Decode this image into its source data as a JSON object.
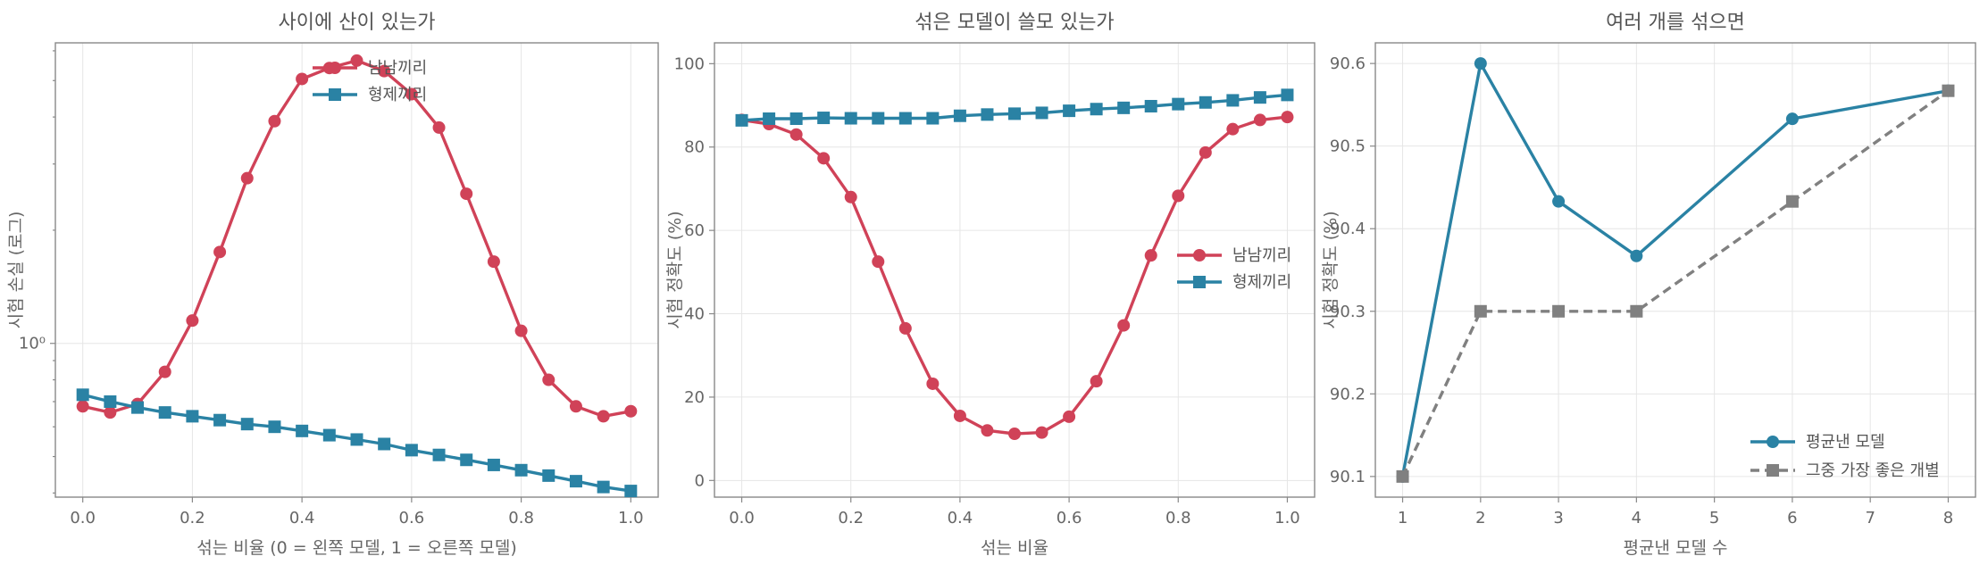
{
  "colors": {
    "red": "#d04258",
    "blue": "#2a82a4",
    "gray": "#808080"
  },
  "chart_data": [
    {
      "type": "line",
      "title": "사이에 산이 있는가",
      "xlabel": "섞는 비율 (0 = 왼쪽 모델, 1 = 오른쪽 모델)",
      "ylabel": "시험 손실 (로그)",
      "yscale": "log",
      "xlim": [
        -0.05,
        1.05
      ],
      "ylim": [
        0.39,
        6.3
      ],
      "x_ticks": [
        "0.0",
        "0.2",
        "0.4",
        "0.6",
        "0.8",
        "1.0"
      ],
      "y_ticks": [
        "10⁰"
      ],
      "legend_position": "top-center",
      "grid": true,
      "x": [
        0.0,
        0.05,
        0.1,
        0.15,
        0.2,
        0.25,
        0.3,
        0.35,
        0.4,
        0.45,
        0.5,
        0.55,
        0.6,
        0.65,
        0.7,
        0.75,
        0.8,
        0.85,
        0.9,
        0.95,
        1.0
      ],
      "series": [
        {
          "name": "남남끼리",
          "color": "#d04258",
          "marker": "circle",
          "values": [
            0.68,
            0.655,
            0.69,
            0.84,
            1.15,
            1.75,
            2.75,
            3.9,
            5.05,
            5.4,
            5.65,
            5.3,
            4.6,
            3.75,
            2.5,
            1.65,
            1.08,
            0.8,
            0.68,
            0.64,
            0.66
          ]
        },
        {
          "name": "형제끼리",
          "color": "#2a82a4",
          "marker": "square",
          "values": [
            0.73,
            0.7,
            0.675,
            0.655,
            0.64,
            0.625,
            0.61,
            0.6,
            0.585,
            0.57,
            0.555,
            0.54,
            0.52,
            0.505,
            0.49,
            0.475,
            0.46,
            0.445,
            0.43,
            0.415,
            0.405
          ]
        }
      ]
    },
    {
      "type": "line",
      "title": "섞은 모델이 쓸모 있는가",
      "xlabel": "섞는 비율",
      "ylabel": "시험 정확도 (%)",
      "xlim": [
        -0.05,
        1.05
      ],
      "ylim": [
        -4,
        105
      ],
      "x_ticks": [
        "0.0",
        "0.2",
        "0.4",
        "0.6",
        "0.8",
        "1.0"
      ],
      "y_ticks": [
        "0",
        "20",
        "40",
        "60",
        "80",
        "100"
      ],
      "legend_position": "center-right",
      "grid": true,
      "x": [
        0.0,
        0.05,
        0.1,
        0.15,
        0.2,
        0.25,
        0.3,
        0.35,
        0.4,
        0.45,
        0.5,
        0.55,
        0.6,
        0.65,
        0.7,
        0.75,
        0.8,
        0.85,
        0.9,
        0.95,
        1.0
      ],
      "series": [
        {
          "name": "남남끼리",
          "color": "#d04258",
          "marker": "circle",
          "values": [
            86.5,
            85.5,
            83.0,
            77.3,
            68.0,
            52.5,
            36.5,
            23.2,
            15.5,
            12.0,
            11.2,
            11.5,
            15.3,
            23.8,
            37.2,
            54.0,
            68.3,
            78.7,
            84.3,
            86.5,
            87.2
          ]
        },
        {
          "name": "형제끼리",
          "color": "#2a82a4",
          "marker": "square",
          "values": [
            86.4,
            86.8,
            86.8,
            87.0,
            86.9,
            86.9,
            86.9,
            86.9,
            87.5,
            87.8,
            88.0,
            88.2,
            88.7,
            89.1,
            89.4,
            89.8,
            90.3,
            90.7,
            91.2,
            91.9,
            92.5
          ]
        }
      ]
    },
    {
      "type": "line",
      "title": "여러 개를 섞으면",
      "xlabel": "평균낸 모델 수",
      "ylabel": "시험 정확도 (%)",
      "xlim": [
        0.65,
        8.35
      ],
      "ylim": [
        90.075,
        90.625
      ],
      "x_ticks": [
        "1",
        "2",
        "3",
        "4",
        "5",
        "6",
        "7",
        "8"
      ],
      "y_ticks": [
        "90.1",
        "90.2",
        "90.3",
        "90.4",
        "90.5",
        "90.6"
      ],
      "legend_position": "bottom-right",
      "grid": true,
      "x": [
        1,
        2,
        3,
        4,
        6,
        8
      ],
      "series": [
        {
          "name": "평균낸 모델",
          "color": "#2a82a4",
          "marker": "circle",
          "linestyle": "solid",
          "values": [
            90.1,
            90.6,
            90.433,
            90.367,
            90.533,
            90.567
          ]
        },
        {
          "name": "그중 가장 좋은 개별",
          "color": "#808080",
          "marker": "square",
          "linestyle": "dashed",
          "values": [
            90.1,
            90.3,
            90.3,
            90.3,
            90.433,
            90.567
          ]
        }
      ]
    }
  ]
}
